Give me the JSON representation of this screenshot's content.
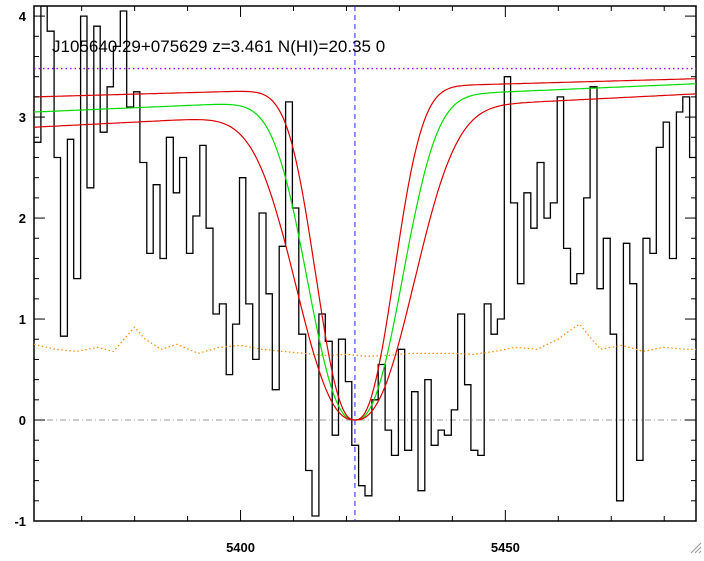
{
  "chart_data": {
    "type": "line",
    "title": "J105640.29+075629 z=3.461 N(HI)=20.35 0",
    "xlabel": "",
    "ylabel": "",
    "xlim": [
      5361,
      5486
    ],
    "ylim": [
      -1.0,
      4.1
    ],
    "xticks": [
      5400,
      5450
    ],
    "yticks": [
      -1,
      0,
      1,
      2,
      3,
      4
    ],
    "xtick_labels": [
      "5400",
      "5450"
    ],
    "ytick_labels": [
      "-1",
      "0",
      "1",
      "2",
      "3",
      "4"
    ],
    "grid": false,
    "legend": "none",
    "center_wavelength": 5421.6,
    "continuum_level": 3.48,
    "zero_level": 0,
    "series": [
      {
        "role": "flux",
        "style": "steps",
        "color": "#000000",
        "x": [
          5361.0,
          5362.3,
          5363.5,
          5364.8,
          5366.0,
          5367.3,
          5368.5,
          5369.8,
          5371.0,
          5372.3,
          5373.5,
          5374.8,
          5376.0,
          5377.3,
          5378.5,
          5379.8,
          5381.0,
          5382.3,
          5383.5,
          5384.8,
          5386.0,
          5387.3,
          5388.5,
          5389.8,
          5391.0,
          5392.3,
          5393.5,
          5394.8,
          5396.0,
          5397.3,
          5398.5,
          5399.8,
          5401.0,
          5402.3,
          5403.5,
          5404.8,
          5406.0,
          5407.3,
          5408.5,
          5409.8,
          5411.0,
          5412.3,
          5413.5,
          5414.8,
          5416.0,
          5417.3,
          5418.5,
          5419.8,
          5421.0,
          5422.3,
          5423.5,
          5424.8,
          5426.0,
          5427.3,
          5428.5,
          5429.8,
          5431.0,
          5432.3,
          5433.5,
          5434.8,
          5436.0,
          5437.3,
          5438.5,
          5439.8,
          5441.0,
          5442.3,
          5443.5,
          5444.8,
          5446.0,
          5447.3,
          5448.5,
          5449.8,
          5451.0,
          5452.3,
          5453.5,
          5454.8,
          5456.0,
          5457.3,
          5458.5,
          5459.8,
          5461.0,
          5462.3,
          5463.5,
          5464.8,
          5466.0,
          5467.3,
          5468.5,
          5469.8,
          5471.0,
          5472.3,
          5473.5,
          5474.8,
          5476.0,
          5477.3,
          5478.5,
          5479.8,
          5481.0,
          5482.3,
          5483.5,
          5484.8
        ],
        "y": [
          2.75,
          4.1,
          3.85,
          2.6,
          0.83,
          2.78,
          1.4,
          4.0,
          2.3,
          3.9,
          2.85,
          3.3,
          3.7,
          4.05,
          3.1,
          3.25,
          2.55,
          1.65,
          2.33,
          1.6,
          2.8,
          2.25,
          2.6,
          1.65,
          2.02,
          2.72,
          1.9,
          1.05,
          1.15,
          0.45,
          0.95,
          2.4,
          1.15,
          0.6,
          2.05,
          1.25,
          0.3,
          1.72,
          3.15,
          2.1,
          0.85,
          -0.5,
          -0.95,
          1.05,
          0.78,
          -0.15,
          0.8,
          0.38,
          -0.25,
          -0.65,
          -0.75,
          0.2,
          0.55,
          -0.1,
          -0.35,
          0.7,
          -0.3,
          0.28,
          -0.7,
          0.4,
          -0.25,
          -0.1,
          -0.15,
          0.1,
          1.05,
          0.35,
          -0.3,
          -0.35,
          1.15,
          0.85,
          1.0,
          3.4,
          2.15,
          1.35,
          2.25,
          1.9,
          2.55,
          2.0,
          2.15,
          3.2,
          1.7,
          1.35,
          1.45,
          2.2,
          3.3,
          1.3,
          1.8,
          0.85,
          -0.8,
          1.75,
          1.35,
          -0.4,
          1.8,
          1.65,
          2.7,
          2.95,
          1.6,
          3.05,
          3.2,
          2.6
        ]
      },
      {
        "role": "error",
        "style": "dotted",
        "color": "#ff8c00",
        "x": [
          5361.0,
          5365.0,
          5369.0,
          5373.0,
          5376.0,
          5378.0,
          5380.0,
          5382.0,
          5385.0,
          5388.0,
          5392.0,
          5396.0,
          5400.0,
          5404.0,
          5408.0,
          5412.0,
          5416.0,
          5420.0,
          5424.0,
          5428.0,
          5432.0,
          5436.0,
          5440.0,
          5444.0,
          5448.0,
          5452.0,
          5456.0,
          5460.0,
          5462.0,
          5464.0,
          5466.0,
          5468.0,
          5472.0,
          5476.0,
          5480.0,
          5484.0,
          5486.0
        ],
        "y": [
          0.75,
          0.7,
          0.68,
          0.72,
          0.68,
          0.8,
          0.92,
          0.8,
          0.7,
          0.75,
          0.66,
          0.72,
          0.74,
          0.7,
          0.68,
          0.66,
          0.64,
          0.65,
          0.63,
          0.64,
          0.66,
          0.66,
          0.66,
          0.65,
          0.68,
          0.72,
          0.7,
          0.8,
          0.88,
          0.95,
          0.82,
          0.7,
          0.74,
          0.68,
          0.72,
          0.7,
          0.7
        ]
      },
      {
        "role": "fit",
        "style": "line",
        "color": "#00dd00",
        "center": 5421.6,
        "half_width": 11.3,
        "continuum_start": 3.05,
        "continuum_end": 3.33
      },
      {
        "role": "fit-upper",
        "style": "line",
        "color": "#dd0000",
        "center": 5421.6,
        "half_width": 9.3,
        "continuum_start": 3.2,
        "continuum_end": 3.38
      },
      {
        "role": "fit-lower",
        "style": "line",
        "color": "#dd0000",
        "center": 5421.6,
        "half_width": 14.0,
        "continuum_start": 2.9,
        "continuum_end": 3.23
      }
    ],
    "reference_lines": {
      "continuum_color": "#a000ff",
      "zero_color": "#999999",
      "center_color": "#2020ff"
    }
  }
}
